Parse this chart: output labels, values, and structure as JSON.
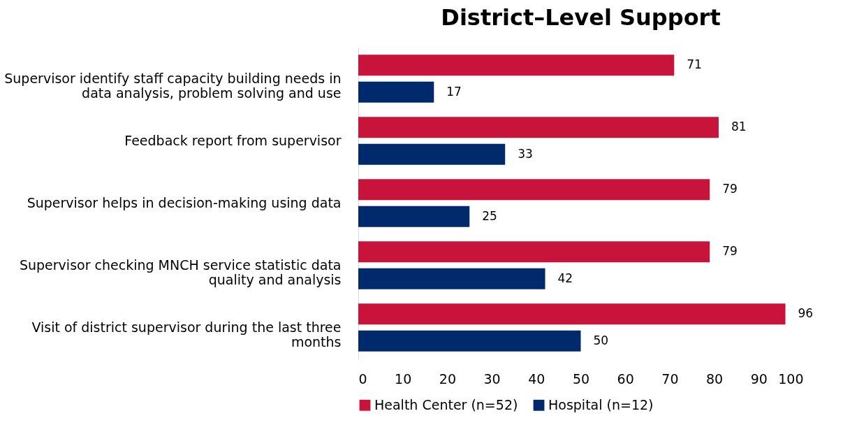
{
  "chart_data": {
    "type": "bar",
    "orientation": "horizontal",
    "title": "District–Level Support",
    "categories": [
      "Supervisor identify staff capacity building needs in data analysis, problem solving and use",
      "Feedback report from supervisor",
      "Supervisor helps in decision-making using data",
      "Supervisor checking MNCH service statistic data quality and analysis",
      "Visit of district supervisor during the last three months"
    ],
    "series": [
      {
        "name": "Health Center (n=52)",
        "color": "#c8133b",
        "values": [
          71,
          81,
          79,
          79,
          96
        ]
      },
      {
        "name": "Hospital (n=12)",
        "color": "#002a6c",
        "values": [
          17,
          33,
          25,
          42,
          50
        ]
      }
    ],
    "xlim": [
      0,
      100
    ],
    "xticks": [
      0,
      10,
      20,
      30,
      40,
      50,
      60,
      70,
      80,
      90,
      100
    ],
    "data_labels": true,
    "grid": false,
    "legend": "bottom"
  }
}
